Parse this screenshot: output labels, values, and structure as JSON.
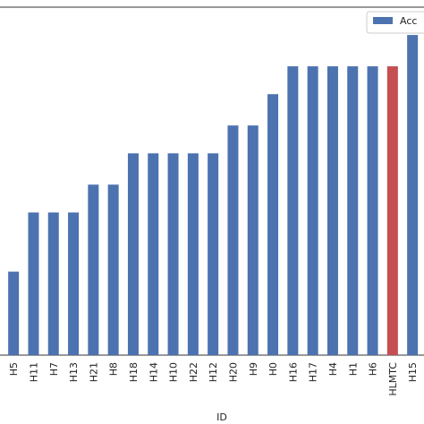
{
  "chart_data": {
    "type": "bar",
    "categories": [
      "H5",
      "H11",
      "H7",
      "H13",
      "H21",
      "H8",
      "H18",
      "H14",
      "H10",
      "H22",
      "H12",
      "H20",
      "H9",
      "H0",
      "H16",
      "H17",
      "H4",
      "H1",
      "H6",
      "HLMTC",
      "H15"
    ],
    "series": [
      {
        "name": "Acc",
        "colors": [
          "#4c72b0",
          "#4c72b0",
          "#4c72b0",
          "#4c72b0",
          "#4c72b0",
          "#4c72b0",
          "#4c72b0",
          "#4c72b0",
          "#4c72b0",
          "#4c72b0",
          "#4c72b0",
          "#4c72b0",
          "#4c72b0",
          "#4c72b0",
          "#4c72b0",
          "#4c72b0",
          "#4c72b0",
          "#4c72b0",
          "#4c72b0",
          "#c44e52",
          "#4c72b0"
        ],
        "color": "#4c72b0",
        "values": [
          24,
          41,
          41,
          41,
          49,
          49,
          58,
          58,
          58,
          58,
          58,
          66,
          66,
          75,
          83,
          83,
          83,
          83,
          83,
          83,
          92
        ]
      }
    ],
    "xlabel": "ID",
    "ylim": [
      0,
      100
    ],
    "legend": "upper right"
  }
}
